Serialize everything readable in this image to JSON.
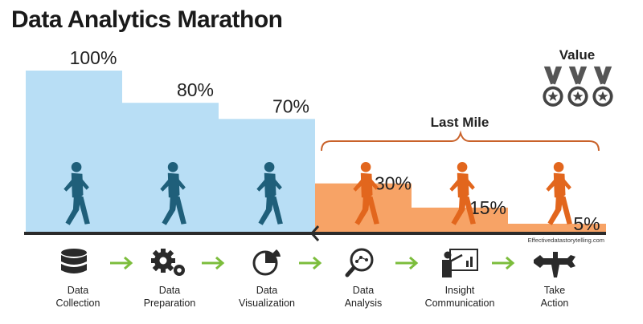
{
  "title": "Data Analytics Marathon",
  "value_label": "Value",
  "last_mile_label": "Last Mile",
  "credit": "Effectivedatastorytelling.com",
  "colors": {
    "blue_fill": "#b8def5",
    "orange_fill": "#f7a366",
    "runner_blue": "#1f5f7a",
    "runner_orange": "#e2661d",
    "bracket": "#c9622a",
    "arrow": "#7cbd3c",
    "icon_dark": "#2a2a2a"
  },
  "chart_data": {
    "type": "bar",
    "title": "Data Analytics Marathon",
    "categories": [
      "Data Collection",
      "Data Preparation",
      "Data Visualization",
      "Data Analysis",
      "Insight Communication",
      "Take Action"
    ],
    "values": [
      100,
      80,
      70,
      30,
      15,
      5
    ],
    "value_labels": [
      "100%",
      "80%",
      "70%",
      "30%",
      "15%",
      "5%"
    ],
    "ylim": [
      0,
      100
    ],
    "grid": false,
    "groups": [
      {
        "name": "",
        "categories": [
          "Data Collection",
          "Data Preparation",
          "Data Visualization"
        ],
        "color": "#b8def5"
      },
      {
        "name": "Last Mile",
        "categories": [
          "Data Analysis",
          "Insight Communication",
          "Take Action"
        ],
        "color": "#f7a366"
      }
    ]
  },
  "stages": [
    {
      "line1": "Data",
      "line2": "Collection",
      "icon": "database-icon"
    },
    {
      "line1": "Data",
      "line2": "Preparation",
      "icon": "gears-icon"
    },
    {
      "line1": "Data",
      "line2": "Visualization",
      "icon": "pie-chart-icon"
    },
    {
      "line1": "Data",
      "line2": "Analysis",
      "icon": "magnifier-icon"
    },
    {
      "line1": "Insight",
      "line2": "Communication",
      "icon": "presenter-icon"
    },
    {
      "line1": "Take",
      "line2": "Action",
      "icon": "tools-icon"
    }
  ]
}
